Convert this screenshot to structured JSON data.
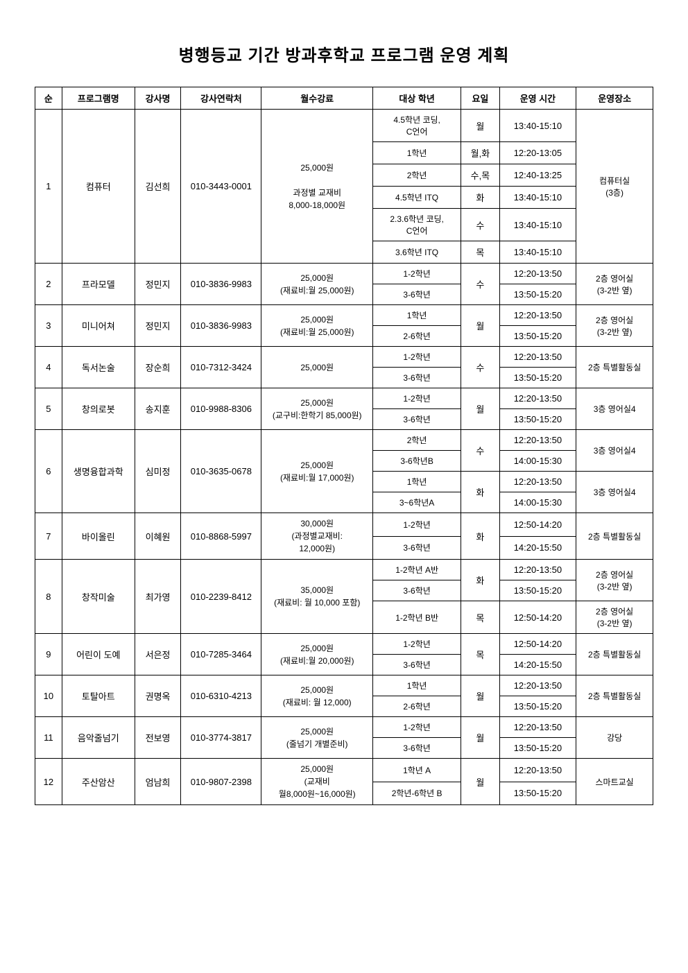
{
  "title": "병행등교 기간 방과후학교 프로그램 운영 계획",
  "headers": {
    "num": "순",
    "program": "프로그램명",
    "teacher": "강사명",
    "contact": "강사연락처",
    "fee": "월수강료",
    "grade": "대상 학년",
    "day": "요일",
    "time": "운영 시간",
    "location": "운영장소"
  },
  "rows": [
    {
      "num": "1",
      "program": "컴퓨터",
      "teacher": "김선희",
      "contact": "010-3443-0001",
      "fee": "25,000원\n\n과정별 교재비\n8,000-18,000원",
      "grade": "4.5학년 코딩,\nC언어",
      "day": "월",
      "time": "13:40-15:10",
      "location": "컴퓨터실\n(3층)"
    },
    {
      "grade": "1학년",
      "day": "월,화",
      "time": "12:20-13:05"
    },
    {
      "grade": "2학년",
      "day": "수,목",
      "time": "12:40-13:25"
    },
    {
      "grade": "4.5학년 ITQ",
      "day": "화",
      "time": "13:40-15:10"
    },
    {
      "grade": "2.3.6학년 코딩,\nC언어",
      "day": "수",
      "time": "13:40-15:10"
    },
    {
      "grade": "3.6학년 ITQ",
      "day": "목",
      "time": "13:40-15:10"
    },
    {
      "num": "2",
      "program": "프라모델",
      "teacher": "정민지",
      "contact": "010-3836-9983",
      "fee": "25,000원\n(재료비:월 25,000원)",
      "grade": "1-2학년",
      "day": "수",
      "time": "12:20-13:50",
      "location": "2층 영어실\n(3-2반 옆)"
    },
    {
      "grade": "3-6학년",
      "time": "13:50-15:20"
    },
    {
      "num": "3",
      "program": "미니어쳐",
      "teacher": "정민지",
      "contact": "010-3836-9983",
      "fee": "25,000원\n(재료비:월 25,000원)",
      "grade": "1학년",
      "day": "월",
      "time": "12:20-13:50",
      "location": "2층 영어실\n(3-2반 옆)"
    },
    {
      "grade": "2-6학년",
      "time": "13:50-15:20"
    },
    {
      "num": "4",
      "program": "독서논술",
      "teacher": "장순희",
      "contact": "010-7312-3424",
      "fee": "25,000원",
      "grade": "1-2학년",
      "day": "수",
      "time": "12:20-13:50",
      "location": "2층 특별활동실"
    },
    {
      "grade": "3-6학년",
      "time": "13:50-15:20"
    },
    {
      "num": "5",
      "program": "창의로봇",
      "teacher": "송지훈",
      "contact": "010-9988-8306",
      "fee": "25,000원\n(교구비:한학기 85,000원)",
      "grade": "1-2학년",
      "day": "월",
      "time": "12:20-13:50",
      "location": "3층 영어실4"
    },
    {
      "grade": "3-6학년",
      "time": "13:50-15:20"
    },
    {
      "num": "6",
      "program": "생명융합과학",
      "teacher": "심미정",
      "contact": "010-3635-0678",
      "fee": "25,000원\n(재료비:월 17,000원)",
      "grade": "2학년",
      "day": "수",
      "time": "12:20-13:50",
      "location": "3층 영어실4"
    },
    {
      "grade": "3-6학년B",
      "time": "14:00-15:30"
    },
    {
      "grade": "1학년",
      "day": "화",
      "time": "12:20-13:50",
      "location": "3층 영어실4"
    },
    {
      "grade": "3~6학년A",
      "time": "14:00-15:30"
    },
    {
      "num": "7",
      "program": "바이올린",
      "teacher": "이혜원",
      "contact": "010-8868-5997",
      "fee": "30,000원\n(과정별교재비:\n12,000원)",
      "grade": "1-2학년",
      "day": "화",
      "time": "12:50-14:20",
      "location": "2층 특별활동실"
    },
    {
      "grade": "3-6학년",
      "time": "14:20-15:50"
    },
    {
      "num": "8",
      "program": "창작미술",
      "teacher": "최가영",
      "contact": "010-2239-8412",
      "fee": "35,000원\n(재료비: 월 10,000 포함)",
      "grade": "1-2학년 A반",
      "day": "화",
      "time": "12:20-13:50",
      "location": "2층 영어실\n(3-2반 옆)"
    },
    {
      "grade": "3-6학년",
      "time": "13:50-15:20"
    },
    {
      "grade": "1-2학년 B반",
      "day": "목",
      "time": "12:50-14:20",
      "location": "2층 영어실\n(3-2반 옆)"
    },
    {
      "num": "9",
      "program": "어린이 도예",
      "teacher": "서은정",
      "contact": "010-7285-3464",
      "fee": "25,000원\n(재료비:월 20,000원)",
      "grade": "1-2학년",
      "day": "목",
      "time": "12:50-14:20",
      "location": "2층 특별활동실"
    },
    {
      "grade": "3-6학년",
      "time": "14:20-15:50"
    },
    {
      "num": "10",
      "program": "토탈아트",
      "teacher": "권명옥",
      "contact": "010-6310-4213",
      "fee": "25,000원\n(재료비: 월 12,000)",
      "grade": "1학년",
      "day": "월",
      "time": "12:20-13:50",
      "location": "2층 특별활동실"
    },
    {
      "grade": "2-6학년",
      "time": "13:50-15:20"
    },
    {
      "num": "11",
      "program": "음악줄넘기",
      "teacher": "전보영",
      "contact": "010-3774-3817",
      "fee": "25,000원\n(줄넘기 개별준비)",
      "grade": "1-2학년",
      "day": "월",
      "time": "12:20-13:50",
      "location": "강당"
    },
    {
      "grade": "3-6학년",
      "time": "13:50-15:20"
    },
    {
      "num": "12",
      "program": "주산암산",
      "teacher": "엄남희",
      "contact": "010-9807-2398",
      "fee": "25,000원\n(교재비\n월8,000원~16,000원)",
      "grade": "1학년 A",
      "day": "월",
      "time": "12:20-13:50",
      "location": "스마트교실"
    },
    {
      "grade": "2학년-6학년 B",
      "time": "13:50-15:20"
    }
  ],
  "spans": [
    {
      "row": 0,
      "numSpan": 6,
      "programSpan": 6,
      "teacherSpan": 6,
      "contactSpan": 6,
      "feeSpan": 6,
      "locationSpan": 6
    },
    {
      "row": 6,
      "numSpan": 2,
      "programSpan": 2,
      "teacherSpan": 2,
      "contactSpan": 2,
      "feeSpan": 2,
      "daySpan": 2,
      "locationSpan": 2
    },
    {
      "row": 8,
      "numSpan": 2,
      "programSpan": 2,
      "teacherSpan": 2,
      "contactSpan": 2,
      "feeSpan": 2,
      "daySpan": 2,
      "locationSpan": 2
    },
    {
      "row": 10,
      "numSpan": 2,
      "programSpan": 2,
      "teacherSpan": 2,
      "contactSpan": 2,
      "feeSpan": 2,
      "daySpan": 2,
      "locationSpan": 2
    },
    {
      "row": 12,
      "numSpan": 2,
      "programSpan": 2,
      "teacherSpan": 2,
      "contactSpan": 2,
      "feeSpan": 2,
      "daySpan": 2,
      "locationSpan": 2
    },
    {
      "row": 14,
      "numSpan": 4,
      "programSpan": 4,
      "teacherSpan": 4,
      "contactSpan": 4,
      "feeSpan": 4,
      "daySpan": 2,
      "locationSpan": 2
    },
    {
      "row": 16,
      "daySpan": 2,
      "locationSpan": 2
    },
    {
      "row": 18,
      "numSpan": 2,
      "programSpan": 2,
      "teacherSpan": 2,
      "contactSpan": 2,
      "feeSpan": 2,
      "daySpan": 2,
      "locationSpan": 2
    },
    {
      "row": 20,
      "numSpan": 3,
      "programSpan": 3,
      "teacherSpan": 3,
      "contactSpan": 3,
      "feeSpan": 3,
      "daySpan": 2,
      "locationSpan": 2
    },
    {
      "row": 22,
      "locationSpan": 1
    },
    {
      "row": 23,
      "numSpan": 2,
      "programSpan": 2,
      "teacherSpan": 2,
      "contactSpan": 2,
      "feeSpan": 2,
      "daySpan": 2,
      "locationSpan": 2
    },
    {
      "row": 25,
      "numSpan": 2,
      "programSpan": 2,
      "teacherSpan": 2,
      "contactSpan": 2,
      "feeSpan": 2,
      "daySpan": 2,
      "locationSpan": 2
    },
    {
      "row": 27,
      "numSpan": 2,
      "programSpan": 2,
      "teacherSpan": 2,
      "contactSpan": 2,
      "feeSpan": 2,
      "daySpan": 2,
      "locationSpan": 2
    },
    {
      "row": 29,
      "numSpan": 2,
      "programSpan": 2,
      "teacherSpan": 2,
      "contactSpan": 2,
      "feeSpan": 2,
      "daySpan": 2,
      "locationSpan": 2
    }
  ]
}
